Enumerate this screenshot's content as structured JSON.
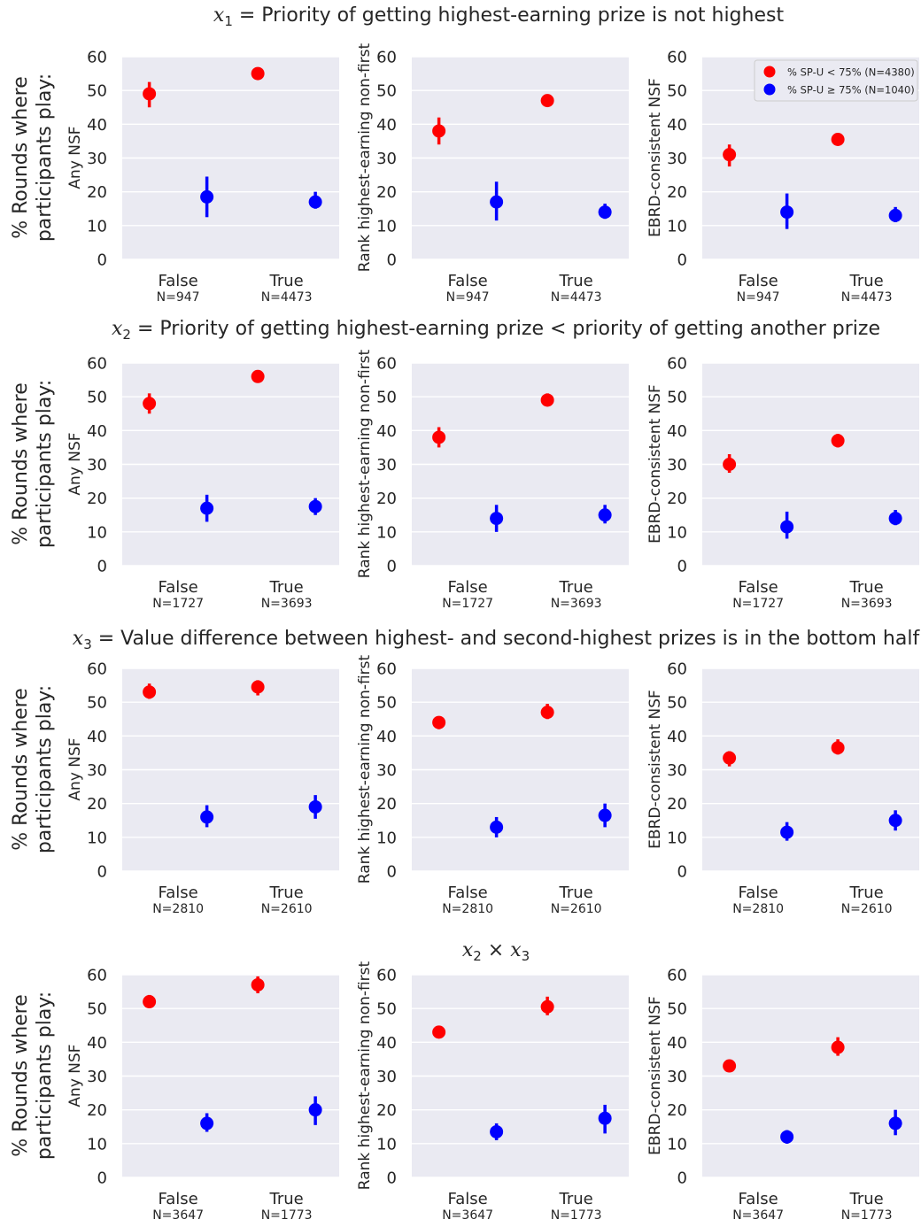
{
  "colors": {
    "low_group": "#ff0000",
    "high_group": "#0000ff",
    "axes_background": "#eaeaf2",
    "grid": "#ffffff",
    "text": "#262626"
  },
  "legend": {
    "placement": "top-right of the first row, third panel",
    "items": [
      {
        "label": "% SP-U  <  75% (N=4380)",
        "color": "#ff0000"
      },
      {
        "label": "% SP-U  ≥  75% (N=1040)",
        "color": "#0000ff"
      }
    ]
  },
  "figure": {
    "row_ylabel_line1": "% Rounds where",
    "row_ylabel_line2": "participants play:",
    "panel_ylabels": [
      "Any NSF",
      "Rank highest-earning non-first",
      "EBRD-consistent NSF"
    ]
  },
  "chart_data": [
    {
      "type": "scatter",
      "row_title_var": "x",
      "row_title_sub": "1",
      "row_title_text": " =  Priority of getting highest-earning prize is not highest",
      "categories": [
        "False",
        "True"
      ],
      "category_counts": [
        "N=947",
        "N=4473"
      ],
      "ylim": [
        0,
        60
      ],
      "yticks": [
        0,
        10,
        20,
        30,
        40,
        50,
        60
      ],
      "show_legend": true,
      "panels": [
        {
          "ylabel": "Any NSF",
          "series": [
            {
              "name": "% SP-U  <  75% (N=4380)",
              "values": [
                49,
                55
              ],
              "err_low": [
                45,
                54
              ],
              "err_high": [
                52.5,
                56
              ]
            },
            {
              "name": "% SP-U  ≥  75% (N=1040)",
              "values": [
                18.5,
                17
              ],
              "err_low": [
                12.5,
                15
              ],
              "err_high": [
                24.5,
                20
              ]
            }
          ]
        },
        {
          "ylabel": "Rank highest-earning non-first",
          "series": [
            {
              "name": "% SP-U  <  75% (N=4380)",
              "values": [
                38,
                47
              ],
              "err_low": [
                34,
                46
              ],
              "err_high": [
                42,
                48.5
              ]
            },
            {
              "name": "% SP-U  ≥  75% (N=1040)",
              "values": [
                17,
                14
              ],
              "err_low": [
                11.5,
                12
              ],
              "err_high": [
                23,
                16.5
              ]
            }
          ]
        },
        {
          "ylabel": "EBRD-consistent NSF",
          "series": [
            {
              "name": "% SP-U  <  75% (N=4380)",
              "values": [
                31,
                35.5
              ],
              "err_low": [
                27.5,
                34.5
              ],
              "err_high": [
                34,
                37
              ]
            },
            {
              "name": "% SP-U  ≥  75% (N=1040)",
              "values": [
                14,
                13
              ],
              "err_low": [
                9,
                11
              ],
              "err_high": [
                19.5,
                15.5
              ]
            }
          ]
        }
      ]
    },
    {
      "type": "scatter",
      "row_title_var": "x",
      "row_title_sub": "2",
      "row_title_text": " =  Priority of getting highest-earning prize  <  priority of getting another prize",
      "categories": [
        "False",
        "True"
      ],
      "category_counts": [
        "N=1727",
        "N=3693"
      ],
      "ylim": [
        0,
        60
      ],
      "yticks": [
        0,
        10,
        20,
        30,
        40,
        50,
        60
      ],
      "show_legend": false,
      "panels": [
        {
          "ylabel": "Any NSF",
          "series": [
            {
              "name": "% SP-U  <  75% (N=4380)",
              "values": [
                48,
                56
              ],
              "err_low": [
                45,
                54.5
              ],
              "err_high": [
                51,
                57.5
              ]
            },
            {
              "name": "% SP-U  ≥  75% (N=1040)",
              "values": [
                17,
                17.5
              ],
              "err_low": [
                13,
                15
              ],
              "err_high": [
                21,
                20
              ]
            }
          ]
        },
        {
          "ylabel": "Rank highest-earning non-first",
          "series": [
            {
              "name": "% SP-U  <  75% (N=4380)",
              "values": [
                38,
                49
              ],
              "err_low": [
                35,
                47.5
              ],
              "err_high": [
                41,
                51
              ]
            },
            {
              "name": "% SP-U  ≥  75% (N=1040)",
              "values": [
                14,
                15
              ],
              "err_low": [
                10,
                12.5
              ],
              "err_high": [
                18,
                18
              ]
            }
          ]
        },
        {
          "ylabel": "EBRD-consistent NSF",
          "series": [
            {
              "name": "% SP-U  <  75% (N=4380)",
              "values": [
                30,
                37
              ],
              "err_low": [
                27.5,
                35
              ],
              "err_high": [
                33,
                39
              ]
            },
            {
              "name": "% SP-U  ≥  75% (N=1040)",
              "values": [
                11.5,
                14
              ],
              "err_low": [
                8,
                12
              ],
              "err_high": [
                16,
                16.5
              ]
            }
          ]
        }
      ]
    },
    {
      "type": "scatter",
      "row_title_var": "x",
      "row_title_sub": "3",
      "row_title_text": " =  Value difference between highest- and second-highest prizes is in the bottom half",
      "categories": [
        "False",
        "True"
      ],
      "category_counts": [
        "N=2810",
        "N=2610"
      ],
      "ylim": [
        0,
        60
      ],
      "yticks": [
        0,
        10,
        20,
        30,
        40,
        50,
        60
      ],
      "show_legend": false,
      "panels": [
        {
          "ylabel": "Any NSF",
          "series": [
            {
              "name": "% SP-U  <  75% (N=4380)",
              "values": [
                53,
                54.5
              ],
              "err_low": [
                51,
                52
              ],
              "err_high": [
                55.5,
                56.5
              ]
            },
            {
              "name": "% SP-U  ≥  75% (N=1040)",
              "values": [
                16,
                19
              ],
              "err_low": [
                13,
                15.5
              ],
              "err_high": [
                19.5,
                22.5
              ]
            }
          ]
        },
        {
          "ylabel": "Rank highest-earning non-first",
          "series": [
            {
              "name": "% SP-U  <  75% (N=4380)",
              "values": [
                44,
                47
              ],
              "err_low": [
                42,
                45
              ],
              "err_high": [
                45.5,
                49.5
              ]
            },
            {
              "name": "% SP-U  ≥  75% (N=1040)",
              "values": [
                13,
                16.5
              ],
              "err_low": [
                10,
                13
              ],
              "err_high": [
                16,
                20
              ]
            }
          ]
        },
        {
          "ylabel": "EBRD-consistent NSF",
          "series": [
            {
              "name": "% SP-U  <  75% (N=4380)",
              "values": [
                33.5,
                36.5
              ],
              "err_low": [
                31,
                34.5
              ],
              "err_high": [
                35.5,
                39
              ]
            },
            {
              "name": "% SP-U  ≥  75% (N=1040)",
              "values": [
                11.5,
                15
              ],
              "err_low": [
                9,
                12
              ],
              "err_high": [
                14.5,
                18
              ]
            }
          ]
        }
      ]
    },
    {
      "type": "scatter",
      "row_title_is_product": true,
      "row_title_var": "x",
      "row_title_sub": "2",
      "row_title_var2": "x",
      "row_title_sub2": "3",
      "row_title_op": " × ",
      "categories": [
        "False",
        "True"
      ],
      "category_counts": [
        "N=3647",
        "N=1773"
      ],
      "ylim": [
        0,
        60
      ],
      "yticks": [
        0,
        10,
        20,
        30,
        40,
        50,
        60
      ],
      "show_legend": false,
      "panels": [
        {
          "ylabel": "Any NSF",
          "series": [
            {
              "name": "% SP-U  <  75% (N=4380)",
              "values": [
                52,
                57
              ],
              "err_low": [
                50.5,
                54.5
              ],
              "err_high": [
                54,
                59.5
              ]
            },
            {
              "name": "% SP-U  ≥  75% (N=1040)",
              "values": [
                16,
                20
              ],
              "err_low": [
                13.5,
                15.5
              ],
              "err_high": [
                19,
                24
              ]
            }
          ]
        },
        {
          "ylabel": "Rank highest-earning non-first",
          "series": [
            {
              "name": "% SP-U  <  75% (N=4380)",
              "values": [
                43,
                50.5
              ],
              "err_low": [
                41.5,
                48
              ],
              "err_high": [
                44.5,
                53.5
              ]
            },
            {
              "name": "% SP-U  ≥  75% (N=1040)",
              "values": [
                13.5,
                17.5
              ],
              "err_low": [
                11,
                13
              ],
              "err_high": [
                16,
                21.5
              ]
            }
          ]
        },
        {
          "ylabel": "EBRD-consistent NSF",
          "series": [
            {
              "name": "% SP-U  <  75% (N=4380)",
              "values": [
                33,
                38.5
              ],
              "err_low": [
                31.5,
                36
              ],
              "err_high": [
                34.5,
                41.5
              ]
            },
            {
              "name": "% SP-U  ≥  75% (N=1040)",
              "values": [
                12,
                16
              ],
              "err_low": [
                10,
                12.5
              ],
              "err_high": [
                14,
                20
              ]
            }
          ]
        }
      ]
    }
  ]
}
